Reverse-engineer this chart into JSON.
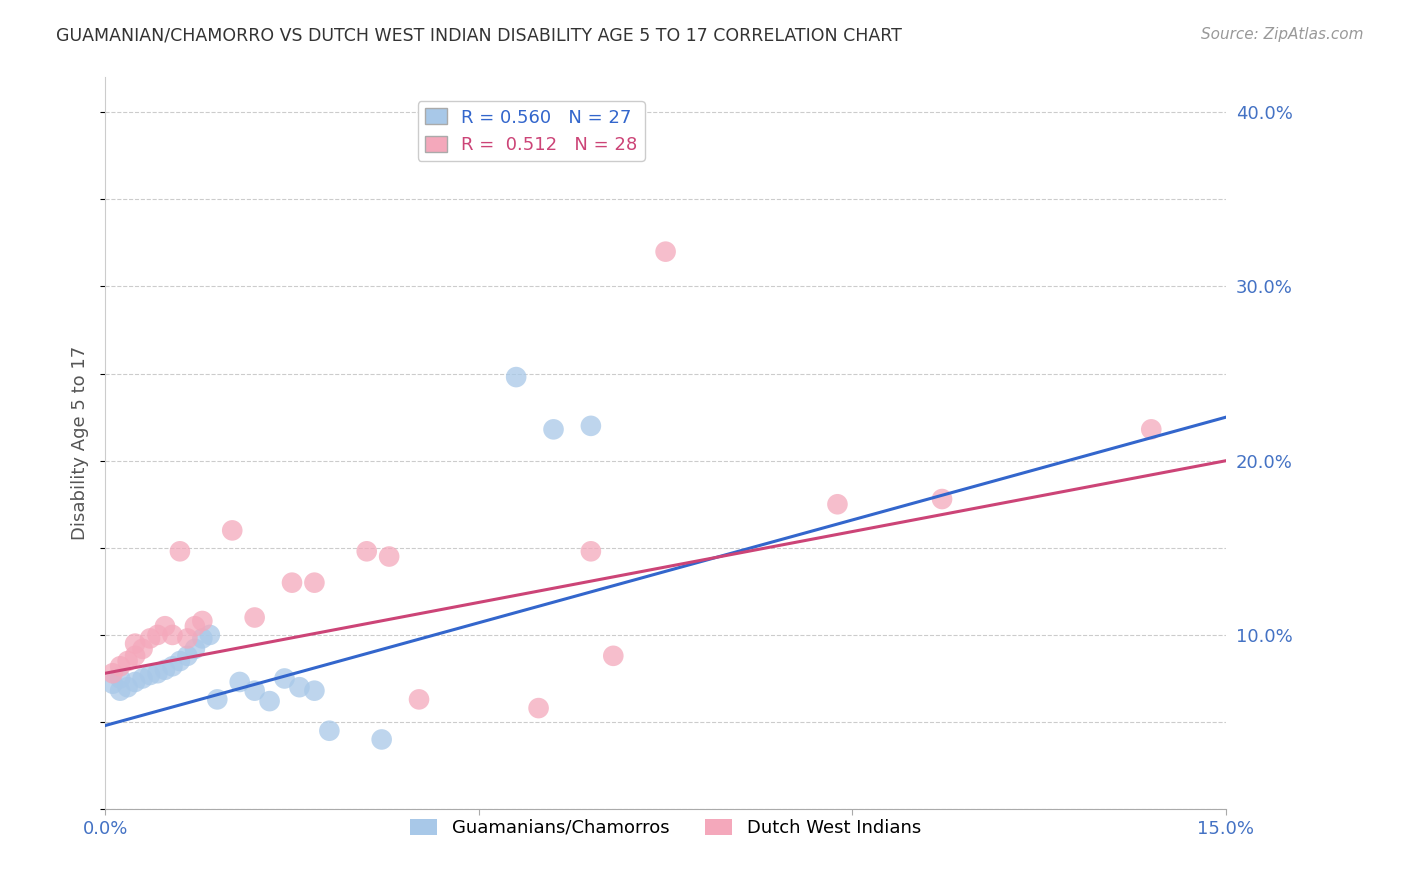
{
  "title": "GUAMANIAN/CHAMORRO VS DUTCH WEST INDIAN DISABILITY AGE 5 TO 17 CORRELATION CHART",
  "source": "Source: ZipAtlas.com",
  "ylabel": "Disability Age 5 to 17",
  "xlim": [
    0.0,
    0.15
  ],
  "ylim": [
    0.0,
    0.42
  ],
  "legend1_label": "Guamanians/Chamorros",
  "legend2_label": "Dutch West Indians",
  "color_blue": "#a8c8e8",
  "color_pink": "#f4a8bb",
  "line_color_blue": "#3366cc",
  "line_color_pink": "#cc4477",
  "R_blue": 0.56,
  "N_blue": 27,
  "R_pink": 0.512,
  "N_pink": 28,
  "blue_points": [
    [
      0.001,
      0.072
    ],
    [
      0.002,
      0.075
    ],
    [
      0.002,
      0.068
    ],
    [
      0.003,
      0.07
    ],
    [
      0.004,
      0.073
    ],
    [
      0.005,
      0.075
    ],
    [
      0.006,
      0.077
    ],
    [
      0.007,
      0.078
    ],
    [
      0.008,
      0.08
    ],
    [
      0.009,
      0.082
    ],
    [
      0.01,
      0.085
    ],
    [
      0.011,
      0.088
    ],
    [
      0.012,
      0.092
    ],
    [
      0.013,
      0.098
    ],
    [
      0.014,
      0.1
    ],
    [
      0.015,
      0.063
    ],
    [
      0.018,
      0.073
    ],
    [
      0.02,
      0.068
    ],
    [
      0.022,
      0.062
    ],
    [
      0.024,
      0.075
    ],
    [
      0.026,
      0.07
    ],
    [
      0.028,
      0.068
    ],
    [
      0.03,
      0.045
    ],
    [
      0.037,
      0.04
    ],
    [
      0.055,
      0.248
    ],
    [
      0.06,
      0.218
    ],
    [
      0.065,
      0.22
    ]
  ],
  "pink_points": [
    [
      0.001,
      0.078
    ],
    [
      0.002,
      0.082
    ],
    [
      0.003,
      0.085
    ],
    [
      0.004,
      0.088
    ],
    [
      0.004,
      0.095
    ],
    [
      0.005,
      0.092
    ],
    [
      0.006,
      0.098
    ],
    [
      0.007,
      0.1
    ],
    [
      0.008,
      0.105
    ],
    [
      0.009,
      0.1
    ],
    [
      0.01,
      0.148
    ],
    [
      0.011,
      0.098
    ],
    [
      0.012,
      0.105
    ],
    [
      0.013,
      0.108
    ],
    [
      0.017,
      0.16
    ],
    [
      0.02,
      0.11
    ],
    [
      0.025,
      0.13
    ],
    [
      0.028,
      0.13
    ],
    [
      0.035,
      0.148
    ],
    [
      0.038,
      0.145
    ],
    [
      0.042,
      0.063
    ],
    [
      0.058,
      0.058
    ],
    [
      0.065,
      0.148
    ],
    [
      0.068,
      0.088
    ],
    [
      0.075,
      0.32
    ],
    [
      0.098,
      0.175
    ],
    [
      0.112,
      0.178
    ],
    [
      0.14,
      0.218
    ]
  ],
  "background_color": "#ffffff",
  "grid_color": "#cccccc",
  "title_color": "#333333",
  "axis_label_color": "#555555",
  "tick_label_color": "#4472c4"
}
